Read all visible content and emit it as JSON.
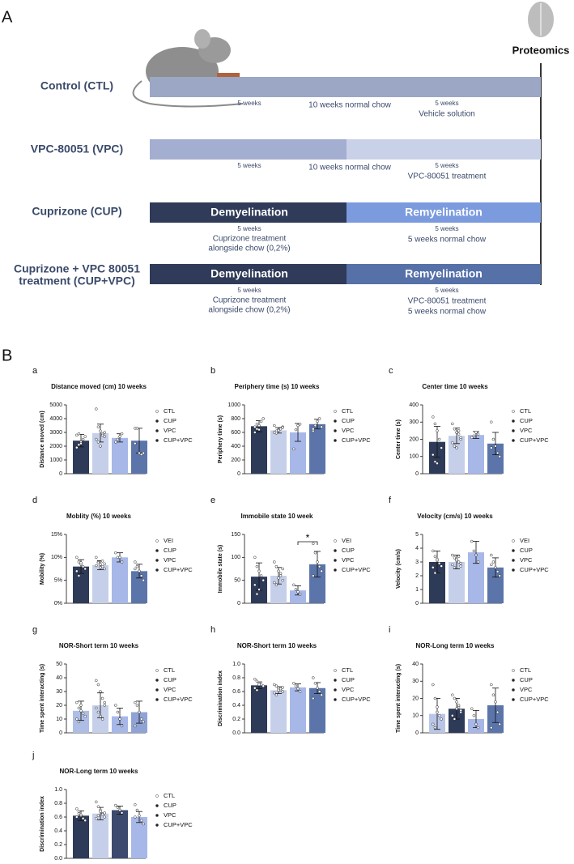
{
  "panel_a": {
    "label": "A",
    "proteomics": "Proteomics",
    "groups": [
      {
        "name": [
          "Control (CTL)"
        ],
        "left": [
          "5 weeks"
        ],
        "middle": [
          "10 weeks normal chow"
        ],
        "right": [
          "5 weeks",
          "Vehicle solution"
        ]
      },
      {
        "name": [
          "VPC-80051 (VPC)"
        ],
        "left": [
          "5 weeks"
        ],
        "middle": [
          "10 weeks normal chow"
        ],
        "right": [
          "5 weeks",
          "VPC-80051 treatment"
        ]
      },
      {
        "name": [
          "Cuprizone (CUP)"
        ],
        "bar": [
          "Demyelination",
          "Remyelination"
        ],
        "left": [
          "5 weeks",
          "Cuprizone treatment",
          "alongside chow (0,2%)"
        ],
        "right": [
          "5 weeks",
          "5 weeks normal chow"
        ]
      },
      {
        "name": [
          "Cuprizone + VPC 80051",
          "treatment (CUP+VPC)"
        ],
        "bar": [
          "Demyelination",
          "Remyelination"
        ],
        "left": [
          "5 weeks",
          "Cuprizone treatment",
          "alongside chow (0,2%)"
        ],
        "right": [
          "5 weeks",
          "VPC-80051 treatment",
          "5 weeks normal chow"
        ]
      }
    ]
  },
  "panel_b": {
    "label": "B"
  },
  "chart_data": [
    {
      "type": "bar",
      "label": "a",
      "title": "Distance moved (cm) 10 weeks",
      "ylabel": "Distance moved (cm)",
      "categories": [
        "CTL",
        "CUP",
        "VPC",
        "CUP+VPC"
      ],
      "values": [
        2400,
        2950,
        2600,
        2400
      ],
      "errors": [
        450,
        650,
        300,
        900
      ],
      "colors": [
        "#2d3a58",
        "#c5cfea",
        "#a7b8e8",
        "#5b75aa"
      ],
      "ylim": [
        0,
        5000
      ],
      "yticks": [
        0,
        1000,
        2000,
        3000,
        4000,
        5000
      ],
      "points": [
        [
          1900,
          2100,
          2300,
          2500,
          2700,
          2800,
          2900,
          2200
        ],
        [
          4700,
          3400,
          3100,
          2900,
          2700,
          2500,
          2300,
          2000,
          2800,
          3000
        ],
        [
          2300,
          2500,
          2700,
          2900
        ],
        [
          3300,
          3300,
          1500,
          1400,
          1500,
          2200
        ]
      ]
    },
    {
      "type": "bar",
      "label": "b",
      "title": "Periphery time (s) 10 weeks",
      "ylabel": "Periphery time (s)",
      "categories": [
        "CTL",
        "CUP",
        "VPC",
        "CUP+VPC"
      ],
      "values": [
        690,
        630,
        600,
        720
      ],
      "errors": [
        80,
        40,
        130,
        70
      ],
      "colors": [
        "#2d3a58",
        "#c5cfea",
        "#a7b8e8",
        "#5b75aa"
      ],
      "ylim": [
        0,
        1000
      ],
      "yticks": [
        0,
        200,
        400,
        600,
        800,
        1000
      ],
      "points": [
        [
          600,
          650,
          700,
          760,
          800,
          680,
          720,
          640
        ],
        [
          600,
          620,
          640,
          660,
          680,
          700,
          590,
          630,
          650,
          670
        ],
        [
          360,
          640,
          700,
          720
        ],
        [
          620,
          700,
          760,
          800,
          680,
          650
        ]
      ]
    },
    {
      "type": "bar",
      "label": "c",
      "title": "Center time 10 weeks",
      "ylabel": "Center time (s)",
      "categories": [
        "CTL",
        "CUP",
        "VPC",
        "CUP+VPC"
      ],
      "values": [
        185,
        220,
        225,
        175
      ],
      "errors": [
        90,
        45,
        20,
        65
      ],
      "colors": [
        "#2d3a58",
        "#c5cfea",
        "#a7b8e8",
        "#5b75aa"
      ],
      "ylim": [
        0,
        400
      ],
      "yticks": [
        0,
        100,
        200,
        300,
        400
      ],
      "points": [
        [
          330,
          290,
          250,
          200,
          150,
          110,
          70,
          60
        ],
        [
          290,
          260,
          240,
          230,
          200,
          180,
          160,
          150,
          250,
          210
        ],
        [
          210,
          220,
          240,
          230
        ],
        [
          300,
          200,
          160,
          120,
          100,
          150
        ]
      ]
    },
    {
      "type": "bar",
      "label": "d",
      "title": "Moblity (%) 10 weeks",
      "ylabel": "Mobility (%)",
      "categories": [
        "VEI",
        "CUP",
        "VPC",
        "CUP+VPC"
      ],
      "values": [
        8,
        8.3,
        10,
        7
      ],
      "errors": [
        1.5,
        1,
        1,
        1.5
      ],
      "colors": [
        "#2d3a58",
        "#c5cfea",
        "#a7b8e8",
        "#5b75aa"
      ],
      "ylim": [
        0,
        15
      ],
      "yticks": [
        {
          "value": 0,
          "label": "0%"
        },
        {
          "value": 5,
          "label": "5%"
        },
        {
          "value": 10,
          "label": "10%"
        },
        {
          "value": 15,
          "label": "15%"
        }
      ],
      "points": [
        [
          10,
          9,
          8.5,
          8,
          7.5,
          7,
          6,
          8.8
        ],
        [
          10,
          9,
          8.5,
          8,
          7.5,
          8.2,
          8.8,
          7.8,
          9.2,
          8.6
        ],
        [
          11,
          10,
          10,
          9
        ],
        [
          9,
          8,
          7,
          6,
          5,
          7.5
        ]
      ]
    },
    {
      "type": "bar",
      "label": "e",
      "title": "Immobile state  10 week",
      "ylabel": "Immobile state (s)",
      "categories": [
        "VEI",
        "CUP",
        "VPC",
        "CUP+VPC"
      ],
      "values": [
        58,
        60,
        28,
        85
      ],
      "errors": [
        30,
        18,
        10,
        28
      ],
      "colors": [
        "#2d3a58",
        "#c5cfea",
        "#a7b8e8",
        "#5b75aa"
      ],
      "ylim": [
        0,
        150
      ],
      "yticks": [
        0,
        50,
        100,
        150
      ],
      "annotation": "*",
      "points": [
        [
          100,
          80,
          70,
          60,
          50,
          40,
          20,
          30
        ],
        [
          90,
          80,
          70,
          60,
          50,
          45,
          40,
          55,
          65,
          75
        ],
        [
          40,
          30,
          25,
          20
        ],
        [
          130,
          110,
          90,
          80,
          70,
          60
        ]
      ]
    },
    {
      "type": "bar",
      "label": "f",
      "title": "Velocity (cm/s) 10 weeks",
      "ylabel": "Velocity (cm/s)",
      "categories": [
        "VEI",
        "CUP",
        "VPC",
        "CUP+VPC"
      ],
      "values": [
        3.0,
        3.0,
        3.7,
        2.6
      ],
      "errors": [
        0.8,
        0.5,
        0.8,
        0.7
      ],
      "colors": [
        "#2d3a58",
        "#c5cfea",
        "#a7b8e8",
        "#5b75aa"
      ],
      "ylim": [
        0,
        5
      ],
      "yticks": [
        0,
        1,
        2,
        3,
        4,
        5
      ],
      "points": [
        [
          3.8,
          3.4,
          3.1,
          2.9,
          2.7,
          2.6,
          2.2,
          3.2
        ],
        [
          3.5,
          3.3,
          3.1,
          3.0,
          2.9,
          2.8,
          2.6,
          3.2,
          3.4,
          2.7
        ],
        [
          4.5,
          3.8,
          3.5,
          3.0
        ],
        [
          3.5,
          3.0,
          2.6,
          2.3,
          2.0,
          2.8
        ]
      ]
    },
    {
      "type": "bar",
      "label": "g",
      "title": "NOR-Short term 10 weeks",
      "ylabel": "Time spent interacting (s)",
      "categories": [
        "CTL",
        "CUP",
        "VPC",
        "CUP+VPC"
      ],
      "values": [
        16,
        20,
        12,
        15
      ],
      "errors": [
        7,
        9,
        6,
        8
      ],
      "colors": [
        "#aebde6",
        "#c5cfea",
        "#a7b8e8",
        "#8fa3d6"
      ],
      "ylim": [
        0,
        50
      ],
      "yticks": [
        0,
        10,
        20,
        30,
        40,
        50
      ],
      "points": [
        [
          22,
          18,
          16,
          14,
          12,
          10,
          8,
          20
        ],
        [
          38,
          35,
          30,
          25,
          20,
          18,
          15,
          12,
          10,
          22
        ],
        [
          20,
          15,
          10,
          5
        ],
        [
          22,
          20,
          15,
          10,
          8,
          5
        ]
      ]
    },
    {
      "type": "bar",
      "label": "h",
      "title": "NOR-Short term 10 weeks",
      "ylabel": "Discrimination index",
      "categories": [
        "CTL",
        "CUP",
        "VPC",
        "CUP+VPC"
      ],
      "values": [
        0.69,
        0.62,
        0.66,
        0.65
      ],
      "errors": [
        0.05,
        0.05,
        0.05,
        0.08
      ],
      "colors": [
        "#2d3a58",
        "#c5cfea",
        "#a7b8e8",
        "#5b75aa"
      ],
      "ylim": [
        0,
        1
      ],
      "yticks": [
        {
          "value": 0,
          "label": "0.0"
        },
        0.2,
        0.4,
        0.6,
        0.8,
        {
          "value": 1,
          "label": "1.0"
        }
      ],
      "points": [
        [
          0.78,
          0.75,
          0.72,
          0.7,
          0.68,
          0.65,
          0.62,
          0.7
        ],
        [
          0.7,
          0.68,
          0.65,
          0.62,
          0.6,
          0.58,
          0.55,
          0.62,
          0.64,
          0.66
        ],
        [
          0.72,
          0.68,
          0.64,
          0.6
        ],
        [
          0.8,
          0.72,
          0.65,
          0.6,
          0.55,
          0.5
        ]
      ]
    },
    {
      "type": "bar",
      "label": "i",
      "title": "NOR-Long term 10 weeks",
      "ylabel": "Time spent interacting (s)",
      "categories": [
        "CTL",
        "CUP",
        "VPC",
        "CUP+VPC"
      ],
      "values": [
        11,
        14,
        8,
        16
      ],
      "errors": [
        9,
        6,
        5,
        10
      ],
      "colors": [
        "#b9c6e8",
        "#2d3a58",
        "#a7b8e8",
        "#5b75aa"
      ],
      "ylim": [
        0,
        40
      ],
      "yticks": [
        0,
        10,
        20,
        30,
        40
      ],
      "points": [
        [
          28,
          20,
          15,
          10,
          8,
          5,
          3,
          12
        ],
        [
          22,
          20,
          18,
          15,
          12,
          10,
          8,
          14,
          16,
          13
        ],
        [
          14,
          10,
          5,
          3
        ],
        [
          28,
          22,
          18,
          12,
          5,
          3
        ]
      ]
    },
    {
      "type": "bar",
      "label": "j",
      "title": "NOR-Long term 10 weeks",
      "ylabel": "Discrimination index",
      "categories": [
        "CTL",
        "CUP",
        "VPC",
        "CUP+VPC"
      ],
      "values": [
        0.62,
        0.65,
        0.7,
        0.6
      ],
      "errors": [
        0.07,
        0.09,
        0.06,
        0.08
      ],
      "colors": [
        "#2d3a58",
        "#c5cfea",
        "#3b4a6e",
        "#a7b8e8"
      ],
      "ylim": [
        0,
        1
      ],
      "yticks": [
        {
          "value": 0,
          "label": "0.0"
        },
        0.2,
        0.4,
        0.6,
        0.8,
        {
          "value": 1,
          "label": "1.0"
        }
      ],
      "points": [
        [
          0.72,
          0.68,
          0.62,
          0.58,
          0.55,
          0.6,
          0.65,
          0.63
        ],
        [
          0.82,
          0.75,
          0.7,
          0.65,
          0.6,
          0.58,
          0.62,
          0.68,
          0.64,
          0.66
        ],
        [
          0.77,
          0.74,
          0.7,
          0.66
        ],
        [
          0.78,
          0.7,
          0.62,
          0.55,
          0.5,
          0.6
        ]
      ]
    }
  ]
}
